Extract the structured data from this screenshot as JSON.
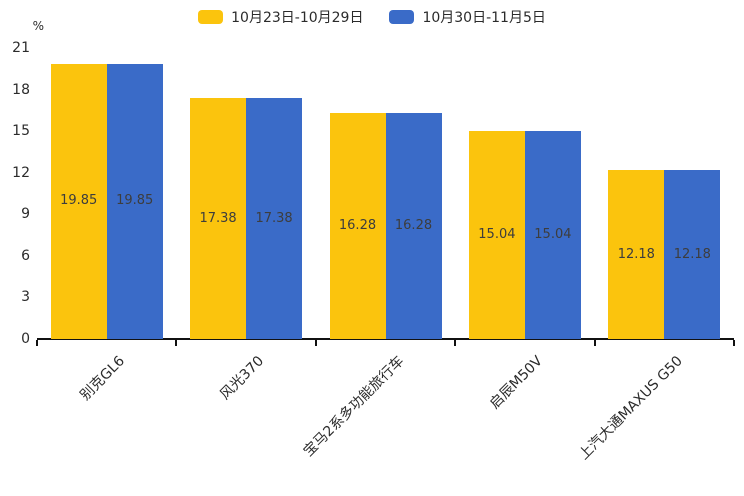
{
  "chart_data": {
    "type": "bar",
    "title": "",
    "xlabel": "",
    "ylabel": "%",
    "unit_label": "%",
    "categories": [
      "别克GL6",
      "风光370",
      "宝马2系多功能旅行车",
      "启辰M50V",
      "上汽大通MAXUS G50"
    ],
    "series": [
      {
        "name": "10月23日-10月29日",
        "color": "#FBC40D",
        "values": [
          19.85,
          17.38,
          16.28,
          15.04,
          12.18
        ]
      },
      {
        "name": "10月30日-11月5日",
        "color": "#3A6BC8",
        "values": [
          19.85,
          17.38,
          16.28,
          15.04,
          12.18
        ]
      }
    ],
    "value_label_format": "2-decimals",
    "ylim": [
      0,
      21
    ],
    "yticks": [
      0,
      3,
      6,
      9,
      12,
      15,
      18,
      21
    ],
    "grid": false,
    "legend_position": "top-center"
  },
  "colors": {
    "series1": "#FBC40D",
    "series2": "#3A6BC8",
    "axis": "#111111",
    "tick_text": "#2b2b2b",
    "value_text": "#3d3d3d",
    "background": "#ffffff"
  }
}
